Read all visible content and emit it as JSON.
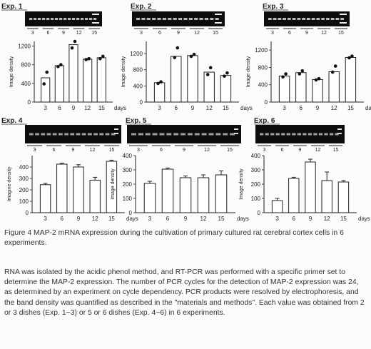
{
  "figure": {
    "caption": "Figure 4 MAP-2 mRNA expression during the cultivation of primary cultured rat cerebral cortex cells in 6 experiments.",
    "body": "RNA was isolated by the acidic phenol method, and RT-PCR was performed with a specific primer set to determine the MAP-2 expression. The number of PCR cycles for the detection of MAP-2 expression was 24, as determined by an experiment on cycle dependency. PCR products were resolved by electrophoresis, and the band density was quantified as described in the \"materials and methods\". Each value was obtained from 2 or 3 dishes (Exp. 1~3)    or 5 or 6 dishes (Exp. 4~6) in 6 experiments."
  },
  "chart_data": [
    {
      "type": "bar",
      "title": "Exp. 1",
      "ylabel": "Image density",
      "xunit": "days",
      "categories": [
        "3",
        "6",
        "9",
        "12",
        "15"
      ],
      "values": [
        520,
        780,
        1230,
        920,
        950
      ],
      "points": [
        [
          640,
          390
        ],
        [
          800,
          760
        ],
        [
          1300,
          1160
        ],
        [
          930,
          910
        ],
        [
          980,
          930
        ]
      ],
      "ylim": [
        0,
        1300
      ],
      "yticks": [
        0,
        400,
        800,
        1200
      ],
      "gel_labels": [
        "3",
        "6",
        "9",
        "12",
        "15"
      ]
    },
    {
      "type": "bar",
      "title": "Exp. 2",
      "ylabel": "Image density",
      "xunit": "days",
      "categories": [
        "3",
        "6",
        "9",
        "12",
        "15"
      ],
      "values": [
        480,
        1130,
        1150,
        740,
        660
      ],
      "points": [
        [
          500,
          460
        ],
        [
          1340,
          1100
        ],
        [
          1180,
          1130
        ],
        [
          850,
          680
        ],
        [
          720,
          640
        ]
      ],
      "ylim": [
        0,
        1500
      ],
      "yticks": [
        0,
        400,
        800,
        1200
      ],
      "gel_labels": [
        "3",
        "6",
        "9",
        "12",
        "15"
      ]
    },
    {
      "type": "bar",
      "title": "Exp. 3",
      "ylabel": "Image density",
      "xunit": "days",
      "categories": [
        "3",
        "6",
        "9",
        "12",
        "15"
      ],
      "values": [
        600,
        680,
        520,
        700,
        1030
      ],
      "points": [
        [
          650,
          580
        ],
        [
          720,
          650
        ],
        [
          540,
          510
        ],
        [
          830,
          690
        ],
        [
          1060,
          1020
        ]
      ],
      "ylim": [
        0,
        1400
      ],
      "yticks": [
        0,
        400,
        800,
        1200
      ],
      "gel_labels": [
        "3",
        "6",
        "9",
        "12",
        "15"
      ]
    },
    {
      "type": "bar",
      "title": "Exp. 4",
      "ylabel": "Imagine density",
      "xunit": "days",
      "categories": [
        "3",
        "6",
        "9",
        "12",
        "15"
      ],
      "values": [
        245,
        425,
        400,
        285,
        450
      ],
      "errors": [
        12,
        8,
        20,
        25,
        10
      ],
      "ylim": [
        0,
        500
      ],
      "yticks": [
        0,
        100,
        200,
        300,
        400
      ],
      "gel_labels": [
        "3",
        "6",
        "9",
        "12",
        "15"
      ]
    },
    {
      "type": "bar",
      "title": "Exp. 5",
      "ylabel": "Image density",
      "xunit": "days",
      "categories": [
        "3",
        "6",
        "9",
        "12",
        "15"
      ],
      "values": [
        205,
        305,
        245,
        245,
        265
      ],
      "errors": [
        15,
        8,
        12,
        20,
        28
      ],
      "ylim": [
        0,
        400
      ],
      "yticks": [
        0,
        100,
        200,
        300,
        400
      ],
      "gel_labels": [
        "3",
        "6",
        "9",
        "12",
        "15"
      ]
    },
    {
      "type": "bar",
      "title": "Exp. 6",
      "ylabel": "Image density",
      "xunit": "days",
      "categories": [
        "3",
        "6",
        "9",
        "12",
        "15"
      ],
      "values": [
        85,
        240,
        355,
        225,
        215
      ],
      "errors": [
        15,
        8,
        20,
        60,
        10
      ],
      "ylim": [
        0,
        400
      ],
      "yticks": [
        0,
        100,
        200,
        300,
        400
      ],
      "gel_labels": [
        "3",
        "6",
        "9",
        "12",
        "15"
      ]
    }
  ]
}
